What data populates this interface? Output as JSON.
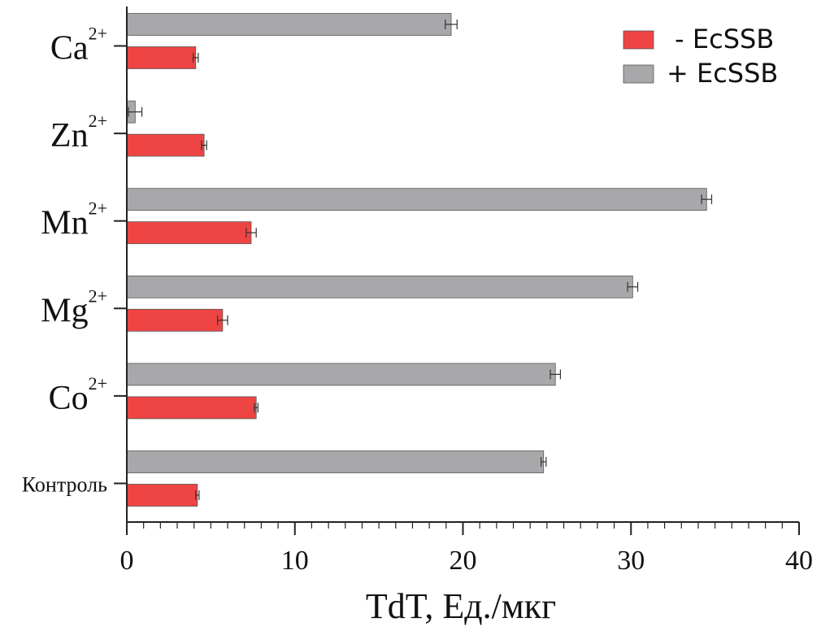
{
  "chart_data": {
    "type": "bar",
    "orientation": "horizontal",
    "categories": [
      {
        "base": "Контроль",
        "sup": ""
      },
      {
        "base": "Co",
        "sup": "2+"
      },
      {
        "base": "Mg",
        "sup": "2+"
      },
      {
        "base": "Mn",
        "sup": "2+"
      },
      {
        "base": "Zn",
        "sup": "2+"
      },
      {
        "base": "Ca",
        "sup": "2+"
      }
    ],
    "series": [
      {
        "name": " - EcSSB",
        "color": "#ee4444",
        "values": [
          4.2,
          7.7,
          5.7,
          7.4,
          4.6,
          4.1
        ],
        "errors": [
          0.1,
          0.1,
          0.3,
          0.3,
          0.15,
          0.15
        ]
      },
      {
        "name": "+ EcSSB",
        "color": "#a8a8ab",
        "values": [
          24.8,
          25.5,
          30.1,
          34.5,
          0.5,
          19.3
        ],
        "errors": [
          0.15,
          0.3,
          0.3,
          0.3,
          0.4,
          0.35
        ]
      }
    ],
    "xlabel": "TdT, Ед./мкг",
    "xlim": [
      0,
      40
    ],
    "xticks": [
      "0",
      "10",
      "20",
      "30",
      "40"
    ],
    "legend_position": "top-right",
    "grid": false
  }
}
